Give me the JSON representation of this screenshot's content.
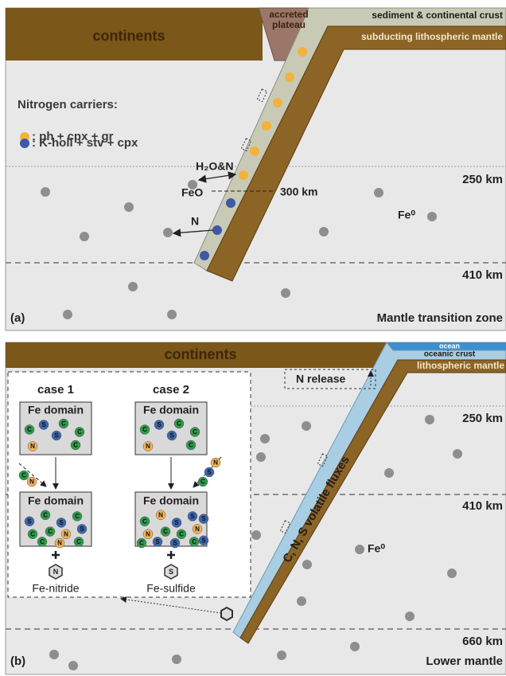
{
  "panel_a": {
    "label": "(a)",
    "continents": "continents",
    "accreted_plateau": [
      "accreted",
      "plateau"
    ],
    "sediment_crust": "sediment & continental crust",
    "subducting_mantle": "subducting lithospheric mantle",
    "legend_title": "Nitrogen carriers:",
    "legend_items": [
      ": ph + cpx + gr",
      ": K-holl + stv + cpx"
    ],
    "fluid_label": "H₂O&N",
    "feo": "FeO",
    "depth_300": "300 km",
    "n_flux": "N",
    "fe0": "Fe⁰",
    "depth_250": "250 km",
    "depth_410": "410 km",
    "zone": "Mantle transition zone"
  },
  "panel_b": {
    "label": "(b)",
    "continents": "continents",
    "ocean": "ocean",
    "oceanic_crust": "oceanic crust",
    "lithospheric_mantle": "lithospheric mantle",
    "n_release": "N release",
    "volatile_fluxes": "C, N, S volatile fluxes",
    "depth_250": "250 km",
    "depth_410": "410 km",
    "depth_660": "660 km",
    "fe0": "Fe⁰",
    "zone": "Lower mantle",
    "cases": [
      {
        "title": "case 1",
        "domain_before": "Fe domain",
        "before": [
          "C",
          "S",
          "C",
          "S",
          "C",
          "N",
          "C"
        ],
        "incoming": [
          "C",
          "N"
        ],
        "domain_after": "Fe domain",
        "after": [
          "S",
          "C",
          "S",
          "C",
          "C",
          "C",
          "N",
          "S",
          "C",
          "N",
          "C"
        ],
        "product_symbol": "N",
        "product": "Fe-nitride"
      },
      {
        "title": "case 2",
        "domain_before": "Fe domain",
        "before": [
          "C",
          "S",
          "C",
          "S",
          "C",
          "N",
          "C"
        ],
        "incoming": [
          "N",
          "S",
          "C"
        ],
        "domain_after": "Fe domain",
        "after": [
          "C",
          "N",
          "S",
          "S",
          "N",
          "C",
          "C",
          "N",
          "S",
          "S",
          "C",
          "S",
          "C",
          "S"
        ],
        "product_symbol": "S",
        "product": "Fe-sulfide"
      }
    ]
  }
}
